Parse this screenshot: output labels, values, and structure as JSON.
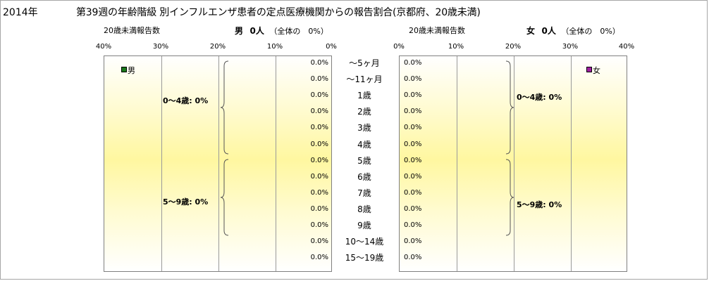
{
  "title": {
    "year": "2014年",
    "main": "第39週の年齢階級 別インフルエンザ患者の定点医療機関からの報告割合(京都府、20歳未満)"
  },
  "male_header": {
    "count_label": "20歳未満報告数",
    "sex": "男",
    "count": "0人",
    "share": "（全体の　0%）"
  },
  "female_header": {
    "count_label": "20歳未満報告数",
    "sex": "女",
    "count": "0人",
    "share": "（全体の　0%）"
  },
  "colors": {
    "male": "#1a7a1a",
    "female": "#a020a0",
    "grid": "#9a9a9a"
  },
  "chart_data": {
    "type": "bar",
    "orientation": "horizontal-population-pyramid",
    "categories": [
      "〜5ヶ月",
      "〜11ヶ月",
      "1歳",
      "2歳",
      "3歳",
      "4歳",
      "5歳",
      "6歳",
      "7歳",
      "8歳",
      "9歳",
      "10〜14歳",
      "15〜19歳"
    ],
    "axis": {
      "ticks": [
        "40%",
        "30%",
        "20%",
        "10%",
        "0%"
      ],
      "female_ticks": [
        "0%",
        "10%",
        "20%",
        "30%",
        "40%"
      ],
      "xlim": [
        0,
        40
      ]
    },
    "series": [
      {
        "name": "男",
        "values": [
          0,
          0,
          0,
          0,
          0,
          0,
          0,
          0,
          0,
          0,
          0,
          0,
          0
        ],
        "labels": [
          "0.0%",
          "0.0%",
          "0.0%",
          "0.0%",
          "0.0%",
          "0.0%",
          "0.0%",
          "0.0%",
          "0.0%",
          "0.0%",
          "0.0%",
          "0.0%",
          "0.0%"
        ]
      },
      {
        "name": "女",
        "values": [
          0,
          0,
          0,
          0,
          0,
          0,
          0,
          0,
          0,
          0,
          0,
          0,
          0
        ],
        "labels": [
          "0.0%",
          "0.0%",
          "0.0%",
          "0.0%",
          "0.0%",
          "0.0%",
          "0.0%",
          "0.0%",
          "0.0%",
          "0.0%",
          "0.0%",
          "0.0%",
          "0.0%"
        ]
      }
    ],
    "annotations": {
      "male_0_4": "0〜4歳: 0%",
      "male_5_9": "5〜9歳: 0%",
      "female_0_4": "0〜4歳: 0%",
      "female_5_9": "5〜9歳: 0%"
    },
    "grid": true
  }
}
